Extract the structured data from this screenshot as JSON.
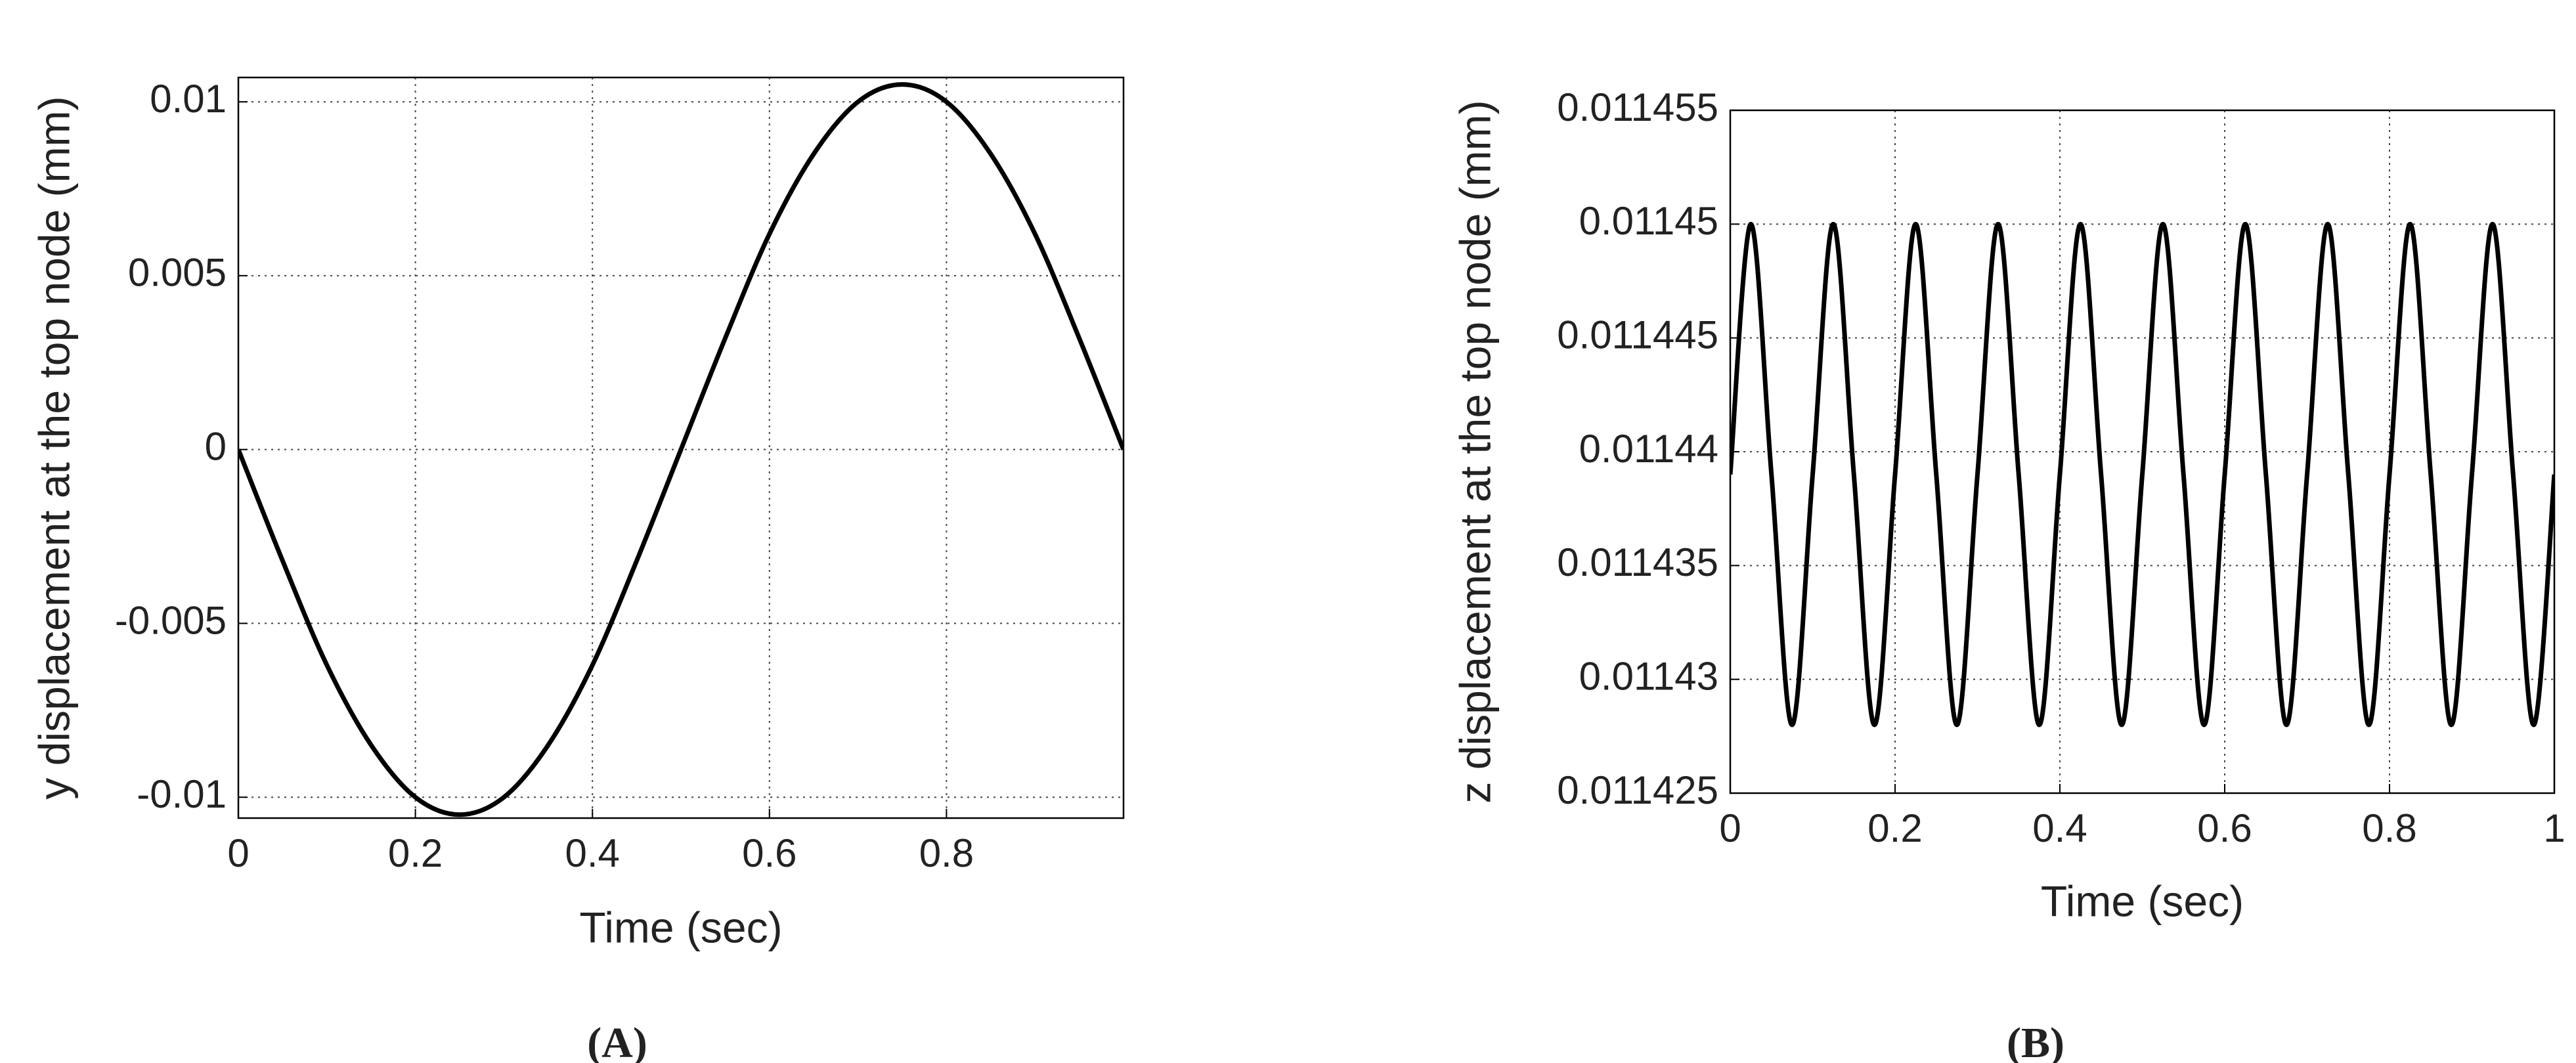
{
  "chart_data": [
    {
      "type": "line",
      "caption": "(A)",
      "xlabel": "Time (sec)",
      "ylabel": "y displacement at the top node (mm)",
      "x": [
        0,
        0.05,
        0.1,
        0.15,
        0.2,
        0.25,
        0.3,
        0.35,
        0.4,
        0.45,
        0.5,
        0.55,
        0.6,
        0.65,
        0.7,
        0.75,
        0.8,
        0.85,
        0.9,
        0.95,
        1
      ],
      "values": [
        0,
        -0.0032,
        -0.0062,
        -0.0085,
        -0.01,
        -0.0105,
        -0.01,
        -0.0085,
        -0.0062,
        -0.0032,
        0,
        0.0032,
        0.0062,
        0.0085,
        0.01,
        0.0105,
        0.01,
        0.0085,
        0.0062,
        0.0032,
        0
      ],
      "color": "#000000",
      "xlim": [
        0,
        1
      ],
      "ylim": [
        -0.0106,
        0.0107
      ],
      "xticks": [
        0,
        0.2,
        0.4,
        0.6,
        0.8
      ],
      "yticks": [
        -0.01,
        -0.005,
        0,
        0.005,
        0.01
      ],
      "grid": true
    },
    {
      "type": "line",
      "caption": "(B)",
      "xlabel": "Time (sec)",
      "ylabel": "z displacement at the top node (mm)",
      "x": [
        0,
        0.025,
        0.05,
        0.075,
        0.1,
        0.125,
        0.15,
        0.175,
        0.2,
        0.225,
        0.25,
        0.275,
        0.3,
        0.325,
        0.35,
        0.375,
        0.4,
        0.425,
        0.45,
        0.475,
        0.5,
        0.525,
        0.55,
        0.575,
        0.6,
        0.625,
        0.65,
        0.675,
        0.7,
        0.725,
        0.75,
        0.775,
        0.8,
        0.825,
        0.85,
        0.875,
        0.9,
        0.925,
        0.95,
        0.975,
        1
      ],
      "values": [
        0.011439,
        0.01145,
        0.011439,
        0.011428,
        0.011439,
        0.01145,
        0.011439,
        0.011428,
        0.011439,
        0.01145,
        0.011439,
        0.011428,
        0.011439,
        0.01145,
        0.011439,
        0.011428,
        0.011439,
        0.01145,
        0.011439,
        0.011428,
        0.011439,
        0.01145,
        0.011439,
        0.011428,
        0.011439,
        0.01145,
        0.011439,
        0.011428,
        0.011439,
        0.01145,
        0.011439,
        0.011428,
        0.011439,
        0.01145,
        0.011439,
        0.011428,
        0.011439,
        0.01145,
        0.011439,
        0.011428,
        0.011439
      ],
      "color": "#000000",
      "xlim": [
        0,
        1
      ],
      "ylim": [
        0.011425,
        0.011455
      ],
      "xticks": [
        0,
        0.2,
        0.4,
        0.6,
        0.8,
        1
      ],
      "yticks": [
        0.011425,
        0.01143,
        0.011435,
        0.01144,
        0.011445,
        0.01145,
        0.011455
      ],
      "grid": true
    }
  ]
}
